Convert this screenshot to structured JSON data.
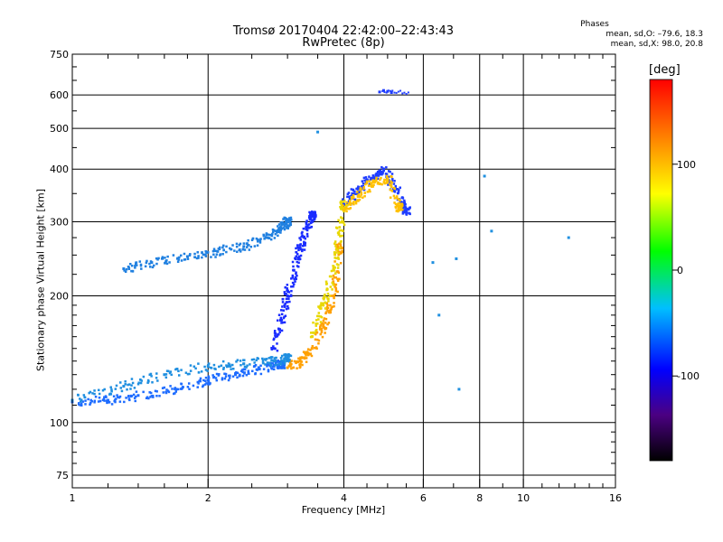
{
  "header": {
    "title_line1": "Tromsø 20170404 22:42:00–22:43:43",
    "title_line2": "RwPretec (8p)",
    "stats_title": "Phases",
    "stats_o": "mean, sd,O: –79.6, 18.3",
    "stats_x": "mean, sd,X:  98.0, 20.8"
  },
  "chart_data": {
    "type": "scatter",
    "title": "Tromsø 20170404 22:42:00–22:43:43",
    "subtitle": "RwPretec (8p)",
    "xlabel": "Frequency [MHz]",
    "ylabel": "Stationary phase Virtual Height [km]",
    "x_scale": "log",
    "y_scale": "log",
    "xlim": [
      1,
      16
    ],
    "ylim": [
      70,
      750
    ],
    "x_ticks": [
      1,
      2,
      4,
      6,
      8,
      10,
      16
    ],
    "y_ticks": [
      75,
      100,
      200,
      300,
      400,
      500,
      600,
      750
    ],
    "grid": true,
    "colorbar": {
      "label": "[deg]",
      "range": [
        -180,
        180
      ],
      "ticks": [
        -100,
        0,
        100
      ],
      "colors": [
        "#000000",
        "#4b0082",
        "#0000ff",
        "#00bfff",
        "#00ff00",
        "#ffff00",
        "#ff8000",
        "#ff0000"
      ]
    },
    "clusters": [
      {
        "name": "o-trace-lower",
        "x": [
          1.0,
          1.2,
          1.4,
          1.7,
          2.0,
          2.3,
          2.6,
          2.9
        ],
        "y": [
          112,
          113,
          116,
          120,
          126,
          130,
          134,
          138
        ],
        "color": "#1e6cff"
      },
      {
        "name": "o-trace-middle",
        "x": [
          1.0,
          1.3,
          1.6,
          2.0,
          2.4,
          2.8,
          3.0
        ],
        "y": [
          113,
          122,
          130,
          136,
          138,
          140,
          142
        ],
        "color": "#1f8fe0"
      },
      {
        "name": "o-trace-upper",
        "x": [
          1.3,
          1.5,
          1.8,
          2.1,
          2.4,
          2.7,
          2.9,
          3.0
        ],
        "y": [
          232,
          240,
          248,
          255,
          262,
          275,
          290,
          300
        ],
        "color": "#2080e0"
      },
      {
        "name": "o-rise",
        "x": [
          2.8,
          2.9,
          3.0,
          3.1,
          3.2,
          3.3,
          3.4
        ],
        "y": [
          150,
          175,
          200,
          230,
          260,
          290,
          310
        ],
        "color": "#1a2cff"
      },
      {
        "name": "x-trace",
        "x": [
          3.0,
          3.2,
          3.4,
          3.6,
          3.8,
          3.9
        ],
        "y": [
          135,
          140,
          150,
          170,
          200,
          260
        ],
        "color": "#ffa000"
      },
      {
        "name": "x-rise-yellow",
        "x": [
          3.4,
          3.6,
          3.8,
          3.9,
          4.0
        ],
        "y": [
          160,
          190,
          230,
          280,
          330
        ],
        "color": "#e8d800"
      },
      {
        "name": "f2-o-cusp",
        "x": [
          4.0,
          4.3,
          4.6,
          4.9,
          5.2,
          5.5
        ],
        "y": [
          330,
          360,
          380,
          400,
          360,
          320
        ],
        "color": "#1e3cff"
      },
      {
        "name": "f2-x-cusp",
        "x": [
          4.0,
          4.3,
          4.6,
          5.0,
          5.3
        ],
        "y": [
          320,
          345,
          370,
          380,
          325
        ],
        "color": "#ffc000"
      },
      {
        "name": "top-cluster",
        "x": [
          4.8,
          4.9,
          5.0,
          5.1
        ],
        "y": [
          610,
          615,
          612,
          608
        ],
        "color": "#1e3cff"
      },
      {
        "name": "stray-echoes",
        "x": [
          3.5,
          6.3,
          6.5,
          7.1,
          7.2,
          8.2,
          8.5,
          12.6
        ],
        "y": [
          490,
          240,
          180,
          245,
          120,
          385,
          285,
          275
        ],
        "color": "#2090e0"
      }
    ]
  }
}
